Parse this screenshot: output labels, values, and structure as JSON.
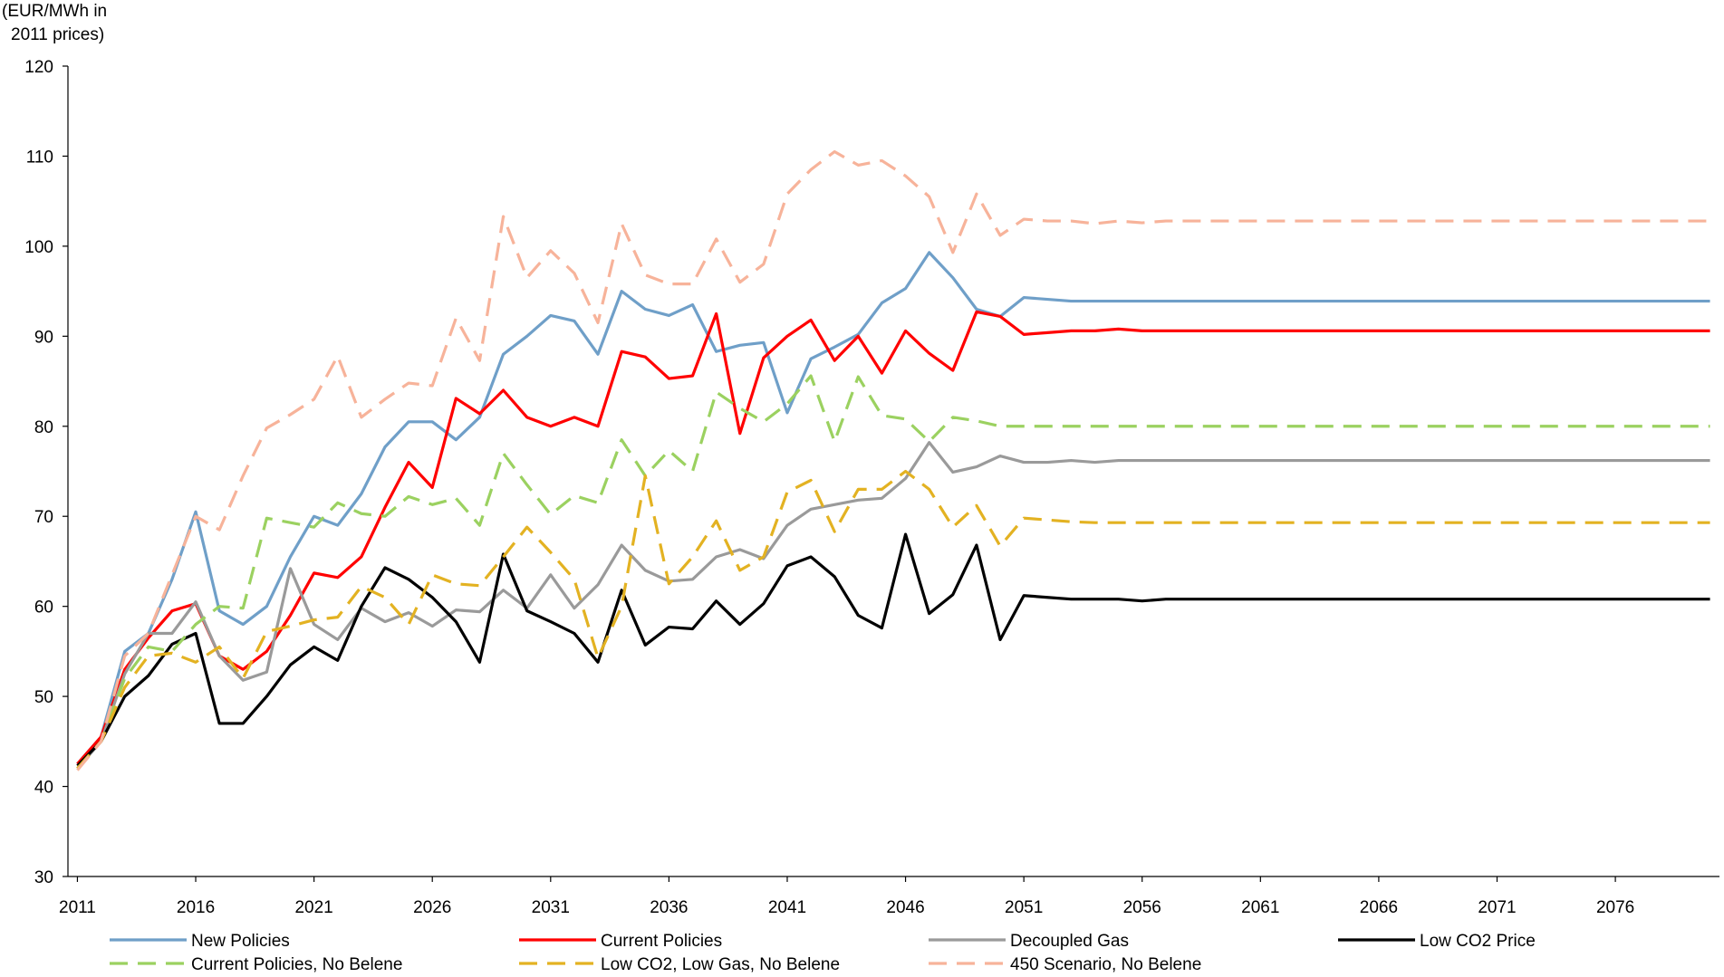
{
  "chart_data": {
    "type": "line",
    "y_label_lines": [
      "(EUR/MWh in",
      "2011 prices)"
    ],
    "x": [
      2011,
      2012,
      2013,
      2014,
      2015,
      2016,
      2017,
      2018,
      2019,
      2020,
      2021,
      2022,
      2023,
      2024,
      2025,
      2026,
      2027,
      2028,
      2029,
      2030,
      2031,
      2032,
      2033,
      2034,
      2035,
      2036,
      2037,
      2038,
      2039,
      2040,
      2041,
      2042,
      2043,
      2044,
      2045,
      2046,
      2047,
      2048,
      2049,
      2050,
      2051,
      2052,
      2053,
      2054,
      2055,
      2056,
      2057,
      2058,
      2059,
      2060,
      2061,
      2062,
      2063,
      2064,
      2065,
      2066,
      2067,
      2068,
      2069,
      2070,
      2071,
      2072,
      2073,
      2074,
      2075,
      2076,
      2077,
      2078,
      2079,
      2080
    ],
    "xlim": [
      2010.6,
      2080.4
    ],
    "xticks": [
      2011,
      2016,
      2021,
      2026,
      2031,
      2036,
      2041,
      2046,
      2051,
      2056,
      2061,
      2066,
      2071,
      2076
    ],
    "ylim": [
      30,
      120
    ],
    "yticks": [
      30,
      40,
      50,
      60,
      70,
      80,
      90,
      100,
      110,
      120
    ],
    "series": [
      {
        "name": "New  Policies",
        "color": "#6f9fc8",
        "dashed": false,
        "values": [
          42.5,
          45.5,
          55,
          57,
          63,
          70.5,
          59.5,
          58,
          60,
          65.5,
          70,
          69,
          72.5,
          77.7,
          80.5,
          80.5,
          78.5,
          81,
          88,
          90,
          92.3,
          91.7,
          88,
          95,
          93,
          92.3,
          93.5,
          88.3,
          89,
          89.3,
          81.5,
          87.5,
          88.8,
          90.2,
          93.7,
          95.3,
          99.3,
          96.5,
          93,
          92.2,
          94.3,
          94.1,
          93.9,
          93.9,
          93.9,
          93.9,
          93.9,
          93.9,
          93.9,
          93.9,
          93.9,
          93.9,
          93.9,
          93.9,
          93.9,
          93.9,
          93.9,
          93.9,
          93.9,
          93.9,
          93.9,
          93.9,
          93.9,
          93.9,
          93.9,
          93.9,
          93.9,
          93.9,
          93.9,
          93.9
        ]
      },
      {
        "name": "Current Policies",
        "color": "#ff0000",
        "dashed": false,
        "values": [
          42.5,
          45.5,
          53,
          56.5,
          59.5,
          60.3,
          54.5,
          53,
          55,
          59,
          63.7,
          63.2,
          65.5,
          71,
          76,
          73.2,
          83.1,
          81.4,
          84,
          81,
          80,
          81,
          80,
          88.3,
          87.7,
          85.3,
          85.6,
          92.5,
          79.2,
          87.6,
          90,
          91.8,
          87.3,
          90,
          85.9,
          90.6,
          88.1,
          86.2,
          92.7,
          92.2,
          90.2,
          90.4,
          90.6,
          90.6,
          90.8,
          90.6,
          90.6,
          90.6,
          90.6,
          90.6,
          90.6,
          90.6,
          90.6,
          90.6,
          90.6,
          90.6,
          90.6,
          90.6,
          90.6,
          90.6,
          90.6,
          90.6,
          90.6,
          90.6,
          90.6,
          90.6,
          90.6,
          90.6,
          90.6,
          90.6
        ]
      },
      {
        "name": "Decoupled Gas",
        "color": "#9a9a9a",
        "dashed": false,
        "values": [
          42,
          45,
          52.5,
          57,
          57,
          60.5,
          54.5,
          51.8,
          52.7,
          64.2,
          58,
          56.3,
          59.8,
          58.3,
          59.3,
          57.8,
          59.6,
          59.4,
          61.8,
          59.8,
          63.5,
          59.8,
          62.4,
          66.8,
          64,
          62.8,
          63,
          65.5,
          66.3,
          65.3,
          69,
          70.8,
          71.3,
          71.8,
          72,
          74.2,
          78.2,
          74.9,
          75.5,
          76.7,
          76,
          76,
          76.2,
          76,
          76.2,
          76.2,
          76.2,
          76.2,
          76.2,
          76.2,
          76.2,
          76.2,
          76.2,
          76.2,
          76.2,
          76.2,
          76.2,
          76.2,
          76.2,
          76.2,
          76.2,
          76.2,
          76.2,
          76.2,
          76.2,
          76.2,
          76.2,
          76.2,
          76.2,
          76.2
        ]
      },
      {
        "name": "Low  CO2 Price",
        "color": "#000000",
        "dashed": false,
        "values": [
          42.3,
          45,
          50,
          52.3,
          55.8,
          57,
          47,
          47,
          50,
          53.5,
          55.5,
          54,
          60,
          64.3,
          63,
          61,
          58.3,
          53.8,
          65.8,
          59.5,
          58.3,
          57,
          53.8,
          61.8,
          55.7,
          57.7,
          57.5,
          60.6,
          58,
          60.3,
          64.5,
          65.5,
          63.3,
          59,
          57.6,
          68,
          59.2,
          61.3,
          66.8,
          56.3,
          61.2,
          61,
          60.8,
          60.8,
          60.8,
          60.6,
          60.8,
          60.8,
          60.8,
          60.8,
          60.8,
          60.8,
          60.8,
          60.8,
          60.8,
          60.8,
          60.8,
          60.8,
          60.8,
          60.8,
          60.8,
          60.8,
          60.8,
          60.8,
          60.8,
          60.8,
          60.8,
          60.8,
          60.8,
          60.8
        ]
      },
      {
        "name": "Current Policies, No Belene",
        "color": "#9bd160",
        "dashed": true,
        "values": [
          42,
          45,
          52,
          55.5,
          55,
          58,
          60,
          59.8,
          69.8,
          69.3,
          68.8,
          71.5,
          70.3,
          70,
          72.2,
          71.3,
          72,
          69,
          77,
          73.5,
          70.2,
          72.3,
          71.5,
          78.5,
          74.5,
          77.3,
          75,
          83.8,
          82,
          80.5,
          82.5,
          85.6,
          78.3,
          85.5,
          81.2,
          80.8,
          78.3,
          81,
          80.6,
          80,
          80,
          80,
          80,
          80,
          80,
          80,
          80,
          80,
          80,
          80,
          80,
          80,
          80,
          80,
          80,
          80,
          80,
          80,
          80,
          80,
          80,
          80,
          80,
          80,
          80,
          80,
          80,
          80,
          80,
          80
        ]
      },
      {
        "name": "Low  CO2, Low  Gas, No Belene",
        "color": "#e3b222",
        "dashed": true,
        "values": [
          42,
          45,
          51,
          54.5,
          54.8,
          53.8,
          55.5,
          52,
          57.2,
          57.8,
          58.5,
          58.8,
          62.2,
          61,
          58,
          63.5,
          62.5,
          62.3,
          65.5,
          68.8,
          66,
          63,
          54.3,
          60,
          74.5,
          62.5,
          65.5,
          69.5,
          64,
          65.5,
          72.7,
          74,
          68.3,
          73,
          73,
          75,
          73,
          68.8,
          71.2,
          66.7,
          69.8,
          69.6,
          69.4,
          69.3,
          69.3,
          69.3,
          69.3,
          69.3,
          69.3,
          69.3,
          69.3,
          69.3,
          69.3,
          69.3,
          69.3,
          69.3,
          69.3,
          69.3,
          69.3,
          69.3,
          69.3,
          69.3,
          69.3,
          69.3,
          69.3,
          69.3,
          69.3,
          69.3,
          69.3,
          69.3
        ]
      },
      {
        "name": "450 Scenario, No Belene",
        "color": "#f7b39a",
        "dashed": true,
        "values": [
          41.8,
          45,
          54.5,
          57,
          63.5,
          70,
          68.5,
          74.5,
          79.8,
          81.3,
          83,
          87.8,
          81,
          83,
          84.8,
          84.5,
          92,
          87.3,
          103.3,
          96.5,
          99.5,
          97,
          91.5,
          102.5,
          96.8,
          95.8,
          95.8,
          100.8,
          96,
          98,
          105.8,
          108.5,
          110.5,
          109,
          109.5,
          107.8,
          105.5,
          99.3,
          105.8,
          101.2,
          103,
          102.8,
          102.8,
          102.5,
          102.8,
          102.6,
          102.8,
          102.8,
          102.8,
          102.8,
          102.8,
          102.8,
          102.8,
          102.8,
          102.8,
          102.8,
          102.8,
          102.8,
          102.8,
          102.8,
          102.8,
          102.8,
          102.8,
          102.8,
          102.8,
          102.8,
          102.8,
          102.8,
          102.8,
          102.8
        ]
      }
    ],
    "legend_columns": 4
  }
}
